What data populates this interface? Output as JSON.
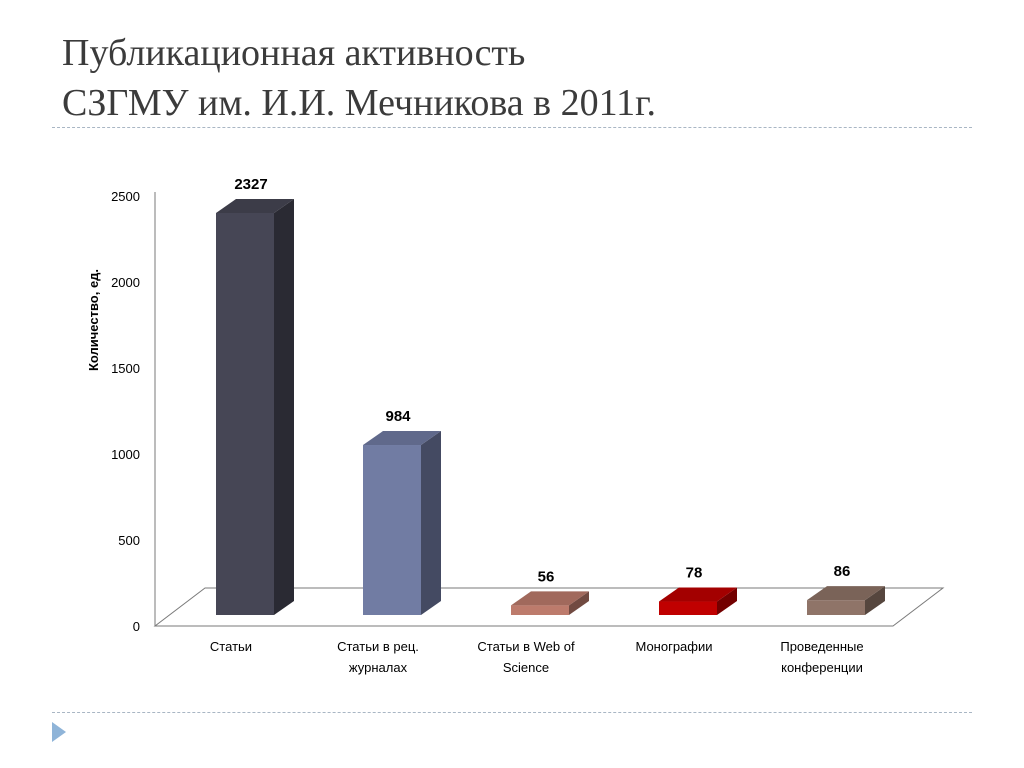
{
  "slide": {
    "title_line1": "Публикационная активность",
    "title_line2": "СЗГМУ им. И.И. Мечникова в 2011г."
  },
  "chart_data": {
    "type": "bar",
    "ylabel": "Количество, ед.",
    "ylim": [
      0,
      2500
    ],
    "yticks": [
      "0",
      "500",
      "1000",
      "1500",
      "2000",
      "2500"
    ],
    "categories": [
      [
        "Статьи"
      ],
      [
        "Статьи в рец.",
        "журналах"
      ],
      [
        "Статьи в Web of",
        "Science"
      ],
      [
        "Монографии"
      ],
      [
        "Проведенные",
        "конференции"
      ]
    ],
    "values": [
      2327,
      984,
      56,
      78,
      86
    ],
    "labels": [
      "2327",
      "984",
      "56",
      "78",
      "86"
    ],
    "colors": [
      "#464655",
      "#717ca3",
      "#bd7b6c",
      "#c00000",
      "#8f7468"
    ],
    "grid": false,
    "legend": "none"
  }
}
